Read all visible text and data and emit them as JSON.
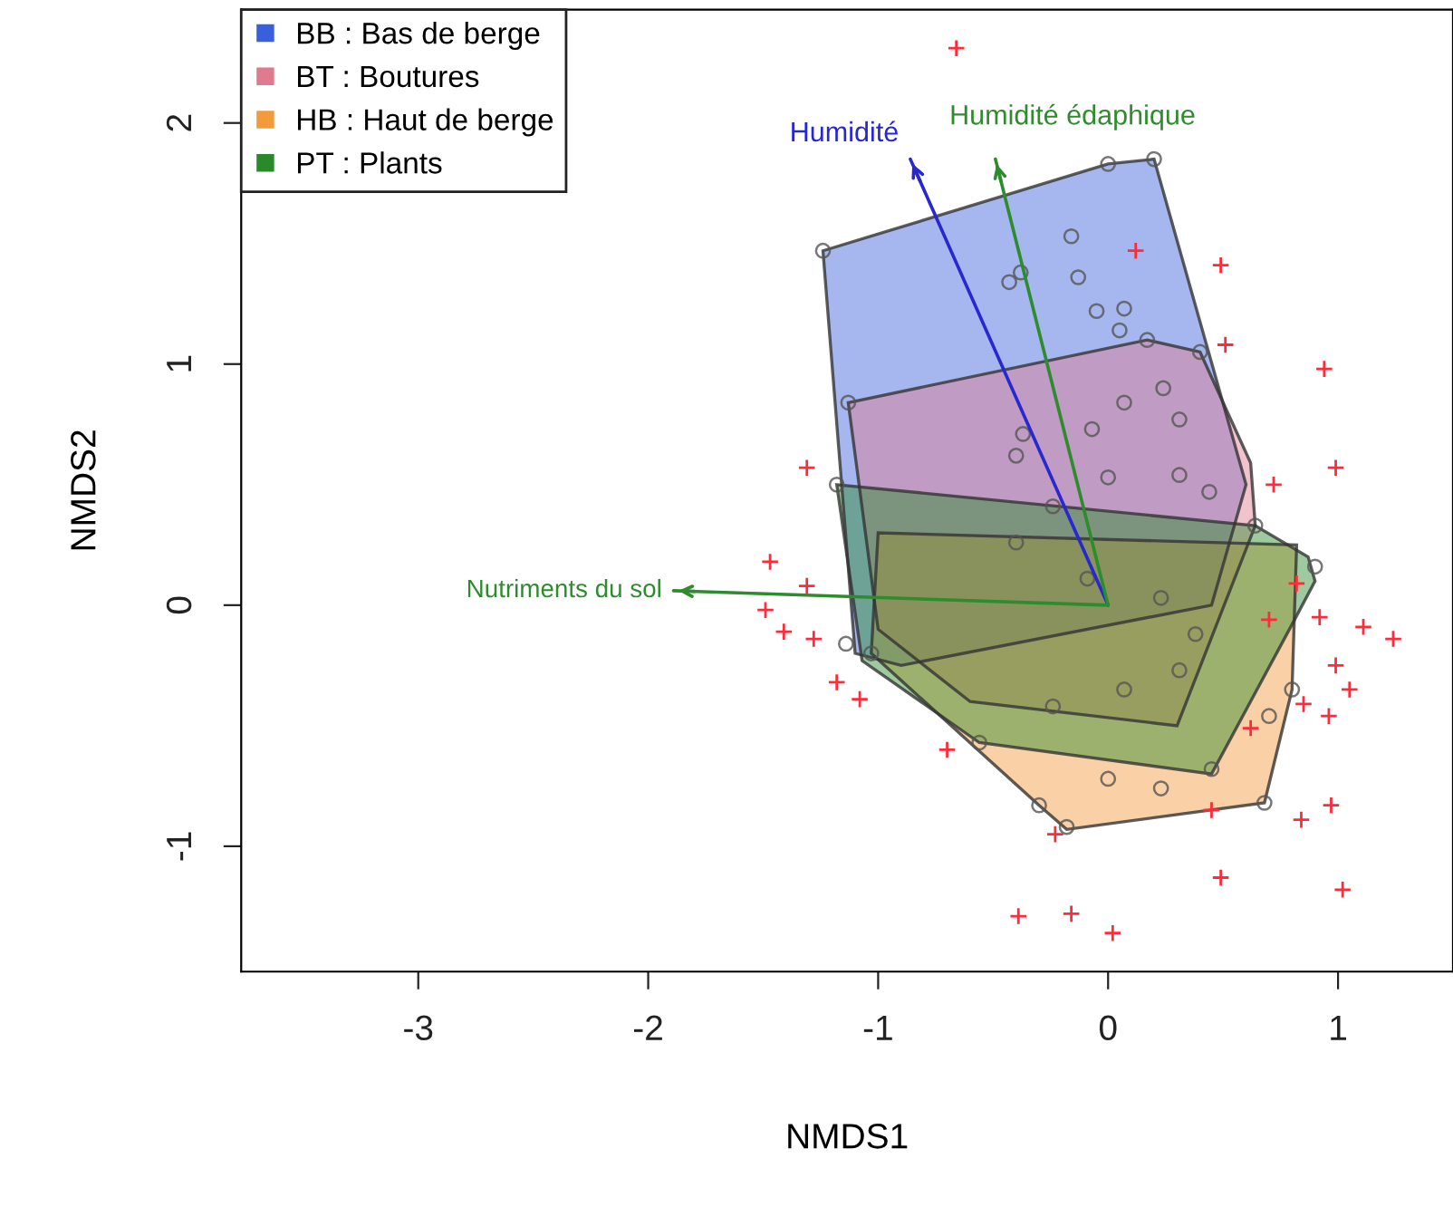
{
  "chart_data": {
    "type": "scatter",
    "xlabel": "NMDS1",
    "ylabel": "NMDS2",
    "xlim": [
      -3.77,
      1.5
    ],
    "ylim": [
      -1.52,
      2.47
    ],
    "xticks": [
      -3,
      -2,
      -1,
      0,
      1
    ],
    "yticks": [
      -1,
      0,
      1,
      2
    ],
    "grid": false,
    "legend": "top left",
    "series": [
      {
        "type": "area",
        "name": "BB : Bas de berge",
        "color": "#3a5fdc",
        "x": [
          -1.24,
          0.0,
          0.2,
          0.6,
          0.45,
          -0.9,
          -1.1
        ],
        "values": [
          1.47,
          1.83,
          1.85,
          0.5,
          0.0,
          -0.25,
          -0.2
        ]
      },
      {
        "type": "area",
        "name": "BT : Boutures",
        "color": "#e07a8e",
        "x": [
          -1.13,
          0.17,
          0.4,
          0.62,
          0.64,
          0.3,
          -0.6,
          -1.0
        ],
        "values": [
          0.84,
          1.1,
          1.05,
          0.59,
          0.33,
          -0.5,
          -0.4,
          -0.1
        ]
      },
      {
        "type": "area",
        "name": "HB : Haut de berge",
        "color": "#f39a3a",
        "x": [
          -1.03,
          -0.3,
          -0.18,
          0.68,
          0.8,
          0.82,
          -1.0
        ],
        "values": [
          -0.2,
          -0.83,
          -0.93,
          -0.82,
          -0.35,
          0.25,
          0.3
        ]
      },
      {
        "type": "area",
        "name": "PT : Plants",
        "color": "#2a8a2a",
        "x": [
          -1.18,
          0.64,
          0.87,
          0.9,
          0.8,
          0.45,
          -0.56,
          -1.07
        ],
        "values": [
          0.5,
          0.33,
          0.2,
          0.1,
          -0.08,
          -0.7,
          -0.57,
          -0.23
        ]
      },
      {
        "type": "scatter",
        "marker": "circle",
        "color": "#555555",
        "x": [
          -0.16,
          -0.43,
          -0.38,
          -0.13,
          -0.05,
          0.07,
          0.05,
          -1.24,
          0.0,
          0.2,
          -1.13,
          0.17,
          0.4,
          0.07,
          0.24,
          0.31,
          -0.07,
          -0.37,
          -0.4,
          0.0,
          0.31,
          0.44,
          -0.24,
          0.64,
          0.9,
          -1.18,
          -1.14,
          -1.03,
          -0.4,
          -0.09,
          0.23,
          0.38,
          0.31,
          0.07,
          -0.24,
          -0.56,
          -0.3,
          -0.18,
          0.0,
          0.23,
          0.68,
          0.8,
          0.7,
          0.45
        ],
        "values": [
          1.53,
          1.34,
          1.38,
          1.36,
          1.22,
          1.23,
          1.14,
          1.47,
          1.83,
          1.85,
          0.84,
          1.1,
          1.05,
          0.84,
          0.9,
          0.77,
          0.73,
          0.71,
          0.62,
          0.53,
          0.54,
          0.47,
          0.41,
          0.33,
          0.16,
          0.5,
          -0.16,
          -0.2,
          0.26,
          0.11,
          0.03,
          -0.12,
          -0.27,
          -0.35,
          -0.42,
          -0.57,
          -0.83,
          -0.92,
          -0.72,
          -0.76,
          -0.82,
          -0.35,
          -0.46,
          -0.68
        ]
      },
      {
        "type": "scatter",
        "marker": "cross",
        "color": "#ff2a3a",
        "x": [
          -0.66,
          0.12,
          0.49,
          0.94,
          0.51,
          0.99,
          0.72,
          -1.31,
          -1.47,
          -1.49,
          -1.31,
          -1.41,
          -1.28,
          -1.18,
          -1.08,
          -0.7,
          0.92,
          1.11,
          1.24,
          0.99,
          1.05,
          0.85,
          0.96,
          0.84,
          0.97,
          1.02,
          0.49,
          -0.39,
          -0.16,
          0.02,
          -0.23,
          0.45,
          0.7,
          0.82,
          0.62
        ],
        "values": [
          2.31,
          1.47,
          1.41,
          0.98,
          1.08,
          0.57,
          0.5,
          0.57,
          0.18,
          -0.02,
          0.08,
          -0.11,
          -0.14,
          -0.32,
          -0.39,
          -0.6,
          -0.05,
          -0.09,
          -0.14,
          -0.25,
          -0.35,
          -0.41,
          -0.46,
          -0.89,
          -0.83,
          -1.18,
          -1.13,
          -1.29,
          -1.28,
          -1.36,
          -0.95,
          -0.85,
          -0.06,
          0.09,
          -0.51
        ]
      },
      {
        "type": "line",
        "color": "#2828d0",
        "x": [
          0,
          -0.86
        ],
        "values": [
          0,
          1.85
        ]
      },
      {
        "type": "line",
        "color": "#2e8b2e",
        "x": [
          0,
          -0.49
        ],
        "values": [
          0,
          1.85
        ]
      },
      {
        "type": "line",
        "color": "#2e8b2e",
        "x": [
          0,
          -1.89
        ],
        "values": [
          0,
          0.06
        ]
      }
    ],
    "annotations": [
      {
        "text": "Humidité",
        "x": -0.86,
        "y": 1.85
      },
      {
        "text": "Humidité édaphique",
        "x": -0.49,
        "y": 1.85
      },
      {
        "text": "Nutriments du sol",
        "x": -1.89,
        "y": 0.06
      }
    ]
  }
}
